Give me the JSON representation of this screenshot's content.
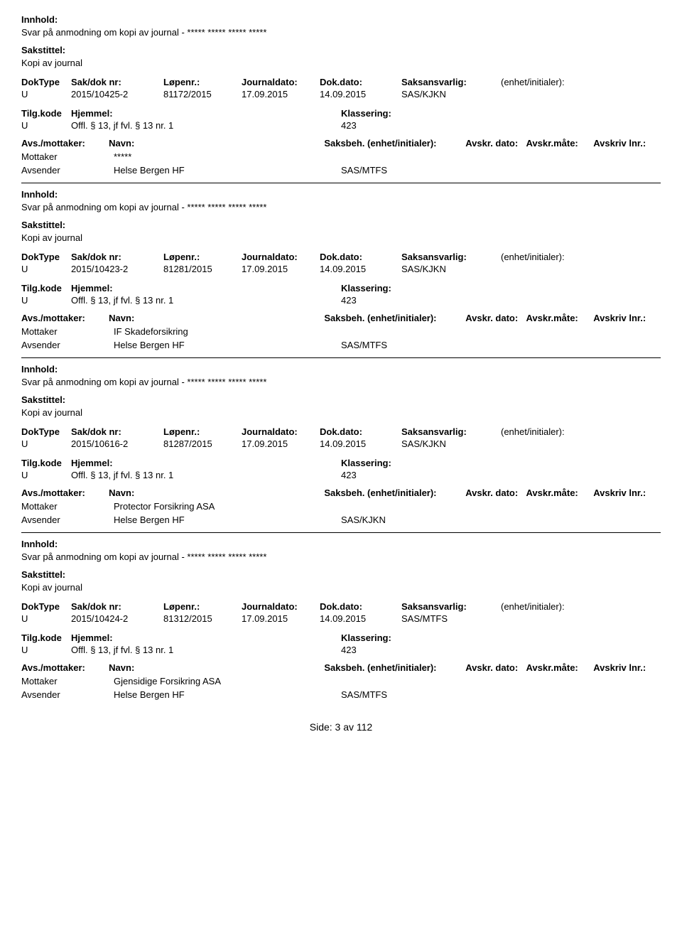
{
  "labels": {
    "innhold": "Innhold:",
    "sakstittel": "Sakstittel:",
    "doktype": "DokType",
    "sakdok": "Sak/dok nr:",
    "lopenr": "Løpenr.:",
    "journaldato": "Journaldato:",
    "dokdato": "Dok.dato:",
    "saksansvarlig": "Saksansvarlig:",
    "enhet": "(enhet/initialer):",
    "tilgkode": "Tilg.kode",
    "hjemmel": "Hjemmel:",
    "klassering": "Klassering:",
    "avsmottaker": "Avs./mottaker:",
    "navn": "Navn:",
    "saksbeh": "Saksbeh. (enhet/initialer):",
    "avskr_dato": "Avskr. dato:",
    "avskr_mate": "Avskr.måte:",
    "avskriv_lnr": "Avskriv lnr.:",
    "mottaker": "Mottaker",
    "avsender": "Avsender"
  },
  "records": [
    {
      "innhold": "Svar på anmodning om kopi av journal - ***** ***** ***** *****",
      "sakstittel": "Kopi av journal",
      "doktype": "U",
      "sakdok": "2015/10425-2",
      "lopenr": "81172/2015",
      "journaldato": "17.09.2015",
      "dokdato": "14.09.2015",
      "saksansvarlig": "SAS/KJKN",
      "tilgkode": "U",
      "hjemmel": "Offl. § 13, jf fvl. § 13 nr. 1",
      "klassering": "423",
      "mottaker": "*****",
      "avsender": "Helse Bergen HF",
      "saksbeh_unit": "SAS/MTFS"
    },
    {
      "innhold": "Svar på anmodning om kopi av journal - ***** ***** ***** *****",
      "sakstittel": "Kopi av journal",
      "doktype": "U",
      "sakdok": "2015/10423-2",
      "lopenr": "81281/2015",
      "journaldato": "17.09.2015",
      "dokdato": "14.09.2015",
      "saksansvarlig": "SAS/KJKN",
      "tilgkode": "U",
      "hjemmel": "Offl. § 13, jf fvl. § 13 nr. 1",
      "klassering": "423",
      "mottaker": "IF Skadeforsikring",
      "avsender": "Helse Bergen HF",
      "saksbeh_unit": "SAS/MTFS"
    },
    {
      "innhold": "Svar på anmodning om kopi av journal - ***** ***** ***** *****",
      "sakstittel": "Kopi av journal",
      "doktype": "U",
      "sakdok": "2015/10616-2",
      "lopenr": "81287/2015",
      "journaldato": "17.09.2015",
      "dokdato": "14.09.2015",
      "saksansvarlig": "SAS/KJKN",
      "tilgkode": "U",
      "hjemmel": "Offl. § 13, jf fvl. § 13 nr. 1",
      "klassering": "423",
      "mottaker": "Protector Forsikring ASA",
      "avsender": "Helse Bergen HF",
      "saksbeh_unit": "SAS/KJKN"
    },
    {
      "innhold": "Svar på anmodning om kopi av journal - ***** ***** ***** *****",
      "sakstittel": "Kopi av journal",
      "doktype": "U",
      "sakdok": "2015/10424-2",
      "lopenr": "81312/2015",
      "journaldato": "17.09.2015",
      "dokdato": "14.09.2015",
      "saksansvarlig": "SAS/MTFS",
      "tilgkode": "U",
      "hjemmel": "Offl. § 13, jf fvl. § 13 nr. 1",
      "klassering": "423",
      "mottaker": "Gjensidige Forsikring ASA",
      "avsender": "Helse Bergen HF",
      "saksbeh_unit": "SAS/MTFS"
    }
  ],
  "footer": "Side: 3 av 112"
}
